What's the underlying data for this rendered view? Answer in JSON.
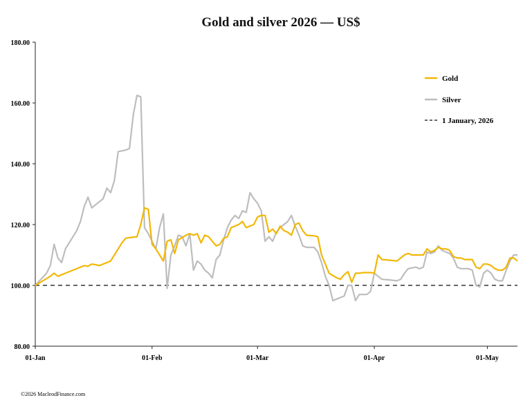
{
  "chart_data": {
    "type": "line",
    "title": "Gold and silver 2026 — US$",
    "xlabel": "",
    "ylabel": "",
    "ylim": [
      80,
      180
    ],
    "y_ticks": [
      "80.00",
      "100.00",
      "120.00",
      "140.00",
      "160.00",
      "180.00"
    ],
    "x_ticks": [
      {
        "label": "01-Jan",
        "day": 0
      },
      {
        "label": "01-Feb",
        "day": 31
      },
      {
        "label": "01-Mar",
        "day": 59
      },
      {
        "label": "01-Apr",
        "day": 90
      },
      {
        "label": "01-May",
        "day": 120
      }
    ],
    "x_range_days": [
      0,
      128
    ],
    "legend_position": "top-right",
    "grid": false,
    "series": [
      {
        "name": "Gold",
        "color": "#F2B705",
        "style": "solid",
        "points": [
          [
            0,
            100
          ],
          [
            2,
            101.5
          ],
          [
            4,
            103
          ],
          [
            5,
            104
          ],
          [
            6,
            103
          ],
          [
            8,
            104
          ],
          [
            10,
            105
          ],
          [
            12,
            106
          ],
          [
            13,
            106.5
          ],
          [
            14,
            106.3
          ],
          [
            15,
            107
          ],
          [
            16,
            106.8
          ],
          [
            17,
            106.5
          ],
          [
            18,
            107
          ],
          [
            19,
            107.5
          ],
          [
            20,
            108
          ],
          [
            22,
            112
          ],
          [
            23,
            114
          ],
          [
            24,
            115.5
          ],
          [
            25,
            115.7
          ],
          [
            27,
            116
          ],
          [
            28,
            120
          ],
          [
            29,
            125.5
          ],
          [
            30,
            125
          ],
          [
            31,
            113.5
          ],
          [
            32,
            112
          ],
          [
            33,
            110
          ],
          [
            34,
            108
          ],
          [
            35,
            114.5
          ],
          [
            36,
            115
          ],
          [
            37,
            110.5
          ],
          [
            38,
            115
          ],
          [
            40,
            116.5
          ],
          [
            41,
            117
          ],
          [
            42,
            116.5
          ],
          [
            43,
            117
          ],
          [
            44,
            114
          ],
          [
            45,
            116.5
          ],
          [
            46,
            116
          ],
          [
            47,
            114.5
          ],
          [
            48,
            113
          ],
          [
            49,
            113.5
          ],
          [
            50,
            115.5
          ],
          [
            51,
            116
          ],
          [
            52,
            119
          ],
          [
            54,
            120
          ],
          [
            55,
            121
          ],
          [
            56,
            119
          ],
          [
            57,
            119.5
          ],
          [
            58,
            120
          ],
          [
            59,
            122.5
          ],
          [
            60,
            123
          ],
          [
            61,
            123
          ],
          [
            62,
            117.5
          ],
          [
            63,
            118.5
          ],
          [
            64,
            117
          ],
          [
            65,
            119.5
          ],
          [
            66,
            118
          ],
          [
            67,
            117.5
          ],
          [
            68,
            116.5
          ],
          [
            69,
            120
          ],
          [
            70,
            120.5
          ],
          [
            71,
            118
          ],
          [
            72,
            116.5
          ],
          [
            74,
            116.3
          ],
          [
            75,
            116
          ],
          [
            76,
            110
          ],
          [
            78,
            104
          ],
          [
            80,
            102.5
          ],
          [
            81,
            102
          ],
          [
            82,
            103.5
          ],
          [
            83,
            104.5
          ],
          [
            84,
            101
          ],
          [
            85,
            104
          ],
          [
            86,
            104
          ],
          [
            87,
            104.2
          ],
          [
            89,
            104.2
          ],
          [
            90,
            104
          ],
          [
            91,
            110
          ],
          [
            92,
            108.5
          ],
          [
            94,
            108.3
          ],
          [
            96,
            108
          ],
          [
            97,
            109
          ],
          [
            98,
            110
          ],
          [
            99,
            110.5
          ],
          [
            100,
            110
          ],
          [
            102,
            110
          ],
          [
            103,
            110
          ],
          [
            104,
            112
          ],
          [
            105,
            111
          ],
          [
            106,
            111.5
          ],
          [
            107,
            112.5
          ],
          [
            108,
            112
          ],
          [
            109,
            112
          ],
          [
            110,
            111.5
          ],
          [
            111,
            109.5
          ],
          [
            112,
            109
          ],
          [
            113,
            109
          ],
          [
            114,
            108.5
          ],
          [
            116,
            108.5
          ],
          [
            117,
            106
          ],
          [
            118,
            105.5
          ],
          [
            119,
            107
          ],
          [
            120,
            107
          ],
          [
            121,
            106.5
          ],
          [
            122,
            105.5
          ],
          [
            123,
            105
          ],
          [
            124,
            105
          ],
          [
            125,
            106
          ],
          [
            126,
            109
          ],
          [
            127,
            109
          ],
          [
            128,
            108
          ]
        ]
      },
      {
        "name": "Silver",
        "color": "#BDBDBD",
        "style": "solid",
        "points": [
          [
            0,
            100
          ],
          [
            3,
            104
          ],
          [
            4,
            106.5
          ],
          [
            5,
            113.5
          ],
          [
            6,
            109
          ],
          [
            7,
            107.5
          ],
          [
            8,
            112
          ],
          [
            9,
            114
          ],
          [
            11,
            118
          ],
          [
            12,
            121
          ],
          [
            13,
            126
          ],
          [
            14,
            129
          ],
          [
            15,
            125.5
          ],
          [
            16,
            126.5
          ],
          [
            17,
            127.5
          ],
          [
            18,
            128.5
          ],
          [
            19,
            132
          ],
          [
            20,
            130.5
          ],
          [
            21,
            134.5
          ],
          [
            22,
            144
          ],
          [
            24,
            144.5
          ],
          [
            25,
            145
          ],
          [
            26,
            156
          ],
          [
            27,
            162.5
          ],
          [
            28,
            162
          ],
          [
            29,
            119
          ],
          [
            30,
            117
          ],
          [
            31,
            114.5
          ],
          [
            32,
            112
          ],
          [
            33,
            119
          ],
          [
            34,
            123.5
          ],
          [
            35,
            99
          ],
          [
            36,
            110
          ],
          [
            37,
            113
          ],
          [
            38,
            116.5
          ],
          [
            39,
            116
          ],
          [
            40,
            113
          ],
          [
            41,
            117
          ],
          [
            42,
            105
          ],
          [
            43,
            108
          ],
          [
            44,
            107
          ],
          [
            45,
            105
          ],
          [
            46,
            104
          ],
          [
            47,
            102.5
          ],
          [
            48,
            108.5
          ],
          [
            49,
            110
          ],
          [
            50,
            115
          ],
          [
            51,
            119
          ],
          [
            52,
            121.5
          ],
          [
            53,
            123
          ],
          [
            54,
            122
          ],
          [
            55,
            124.5
          ],
          [
            56,
            124
          ],
          [
            57,
            130.5
          ],
          [
            58,
            128.5
          ],
          [
            59,
            127
          ],
          [
            60,
            124.5
          ],
          [
            61,
            114.5
          ],
          [
            62,
            116
          ],
          [
            63,
            114.5
          ],
          [
            64,
            117.5
          ],
          [
            65,
            119
          ],
          [
            66,
            120
          ],
          [
            67,
            121
          ],
          [
            68,
            123
          ],
          [
            69,
            119.5
          ],
          [
            70,
            116.5
          ],
          [
            71,
            113
          ],
          [
            72,
            112.5
          ],
          [
            74,
            112.5
          ],
          [
            75,
            111
          ],
          [
            76,
            107.5
          ],
          [
            77,
            103
          ],
          [
            78,
            100
          ],
          [
            79,
            95
          ],
          [
            80,
            95.5
          ],
          [
            82,
            96.5
          ],
          [
            83,
            100
          ],
          [
            84,
            100
          ],
          [
            85,
            95
          ],
          [
            86,
            97
          ],
          [
            87,
            97
          ],
          [
            88,
            97
          ],
          [
            89,
            98
          ],
          [
            90,
            104
          ],
          [
            91,
            103
          ],
          [
            92,
            102
          ],
          [
            94,
            101.8
          ],
          [
            96,
            101.5
          ],
          [
            97,
            102
          ],
          [
            98,
            104
          ],
          [
            99,
            105.5
          ],
          [
            101,
            106
          ],
          [
            102,
            105.5
          ],
          [
            103,
            106
          ],
          [
            104,
            111
          ],
          [
            105,
            110.5
          ],
          [
            106,
            111
          ],
          [
            107,
            113
          ],
          [
            108,
            111.5
          ],
          [
            109,
            111
          ],
          [
            110,
            110.5
          ],
          [
            111,
            109
          ],
          [
            112,
            106
          ],
          [
            113,
            105.5
          ],
          [
            115,
            105.5
          ],
          [
            116,
            105
          ],
          [
            117,
            100
          ],
          [
            118,
            99.5
          ],
          [
            119,
            104
          ],
          [
            120,
            105
          ],
          [
            121,
            104
          ],
          [
            122,
            102
          ],
          [
            123,
            101.5
          ],
          [
            124,
            101.5
          ],
          [
            125,
            105
          ],
          [
            126,
            108
          ],
          [
            127,
            110
          ],
          [
            128,
            110
          ]
        ]
      },
      {
        "name": "1 January, 2026",
        "color": "#333333",
        "style": "dashed",
        "points": [
          [
            0,
            100
          ],
          [
            128,
            100
          ]
        ]
      }
    ]
  },
  "legend": [
    {
      "label": "Gold",
      "marker": "line",
      "color": "#F2B705"
    },
    {
      "label": "Silver",
      "marker": "line",
      "color": "#BDBDBD"
    },
    {
      "label": "1 January, 2026",
      "marker": "dash",
      "color": "#333333"
    }
  ],
  "footer": "©2026 MacleodFinance.com"
}
